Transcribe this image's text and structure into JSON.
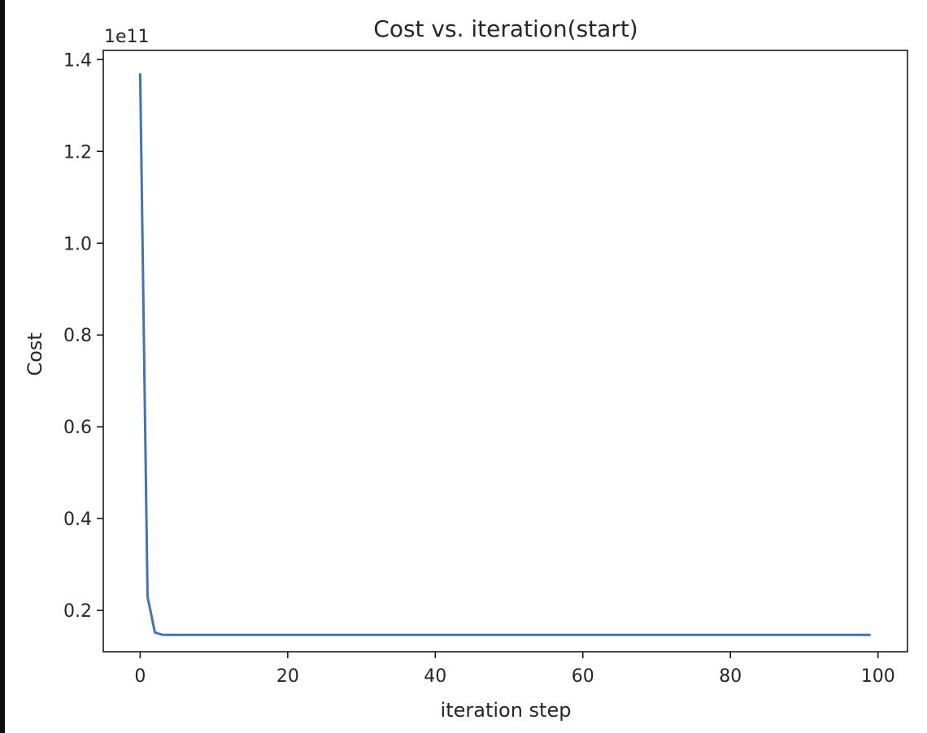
{
  "chart_data": {
    "type": "line",
    "title": "Cost vs. iteration(start)",
    "xlabel": "iteration step",
    "ylabel": "Cost",
    "y_offset_label": "1e11",
    "xlim": [
      -5,
      104
    ],
    "ylim": [
      0.11,
      1.42
    ],
    "xticks": [
      0,
      20,
      40,
      60,
      80,
      100
    ],
    "xtick_labels": [
      "0",
      "20",
      "40",
      "60",
      "80",
      "100"
    ],
    "yticks": [
      0.2,
      0.4,
      0.6,
      0.8,
      1.0,
      1.2,
      1.4
    ],
    "ytick_labels": [
      "0.2",
      "0.4",
      "0.6",
      "0.8",
      "1.0",
      "1.2",
      "1.4"
    ],
    "grid": false,
    "line_color": "#4173b5",
    "series": [
      {
        "x": [
          0,
          1,
          2,
          3,
          4,
          5,
          10,
          20,
          30,
          40,
          50,
          60,
          70,
          80,
          90,
          99
        ],
        "y": [
          1.37,
          0.23,
          0.152,
          0.147,
          0.1468,
          0.1467,
          0.1467,
          0.1467,
          0.1467,
          0.1467,
          0.1467,
          0.1467,
          0.1467,
          0.1467,
          0.1467,
          0.1467
        ]
      }
    ]
  }
}
